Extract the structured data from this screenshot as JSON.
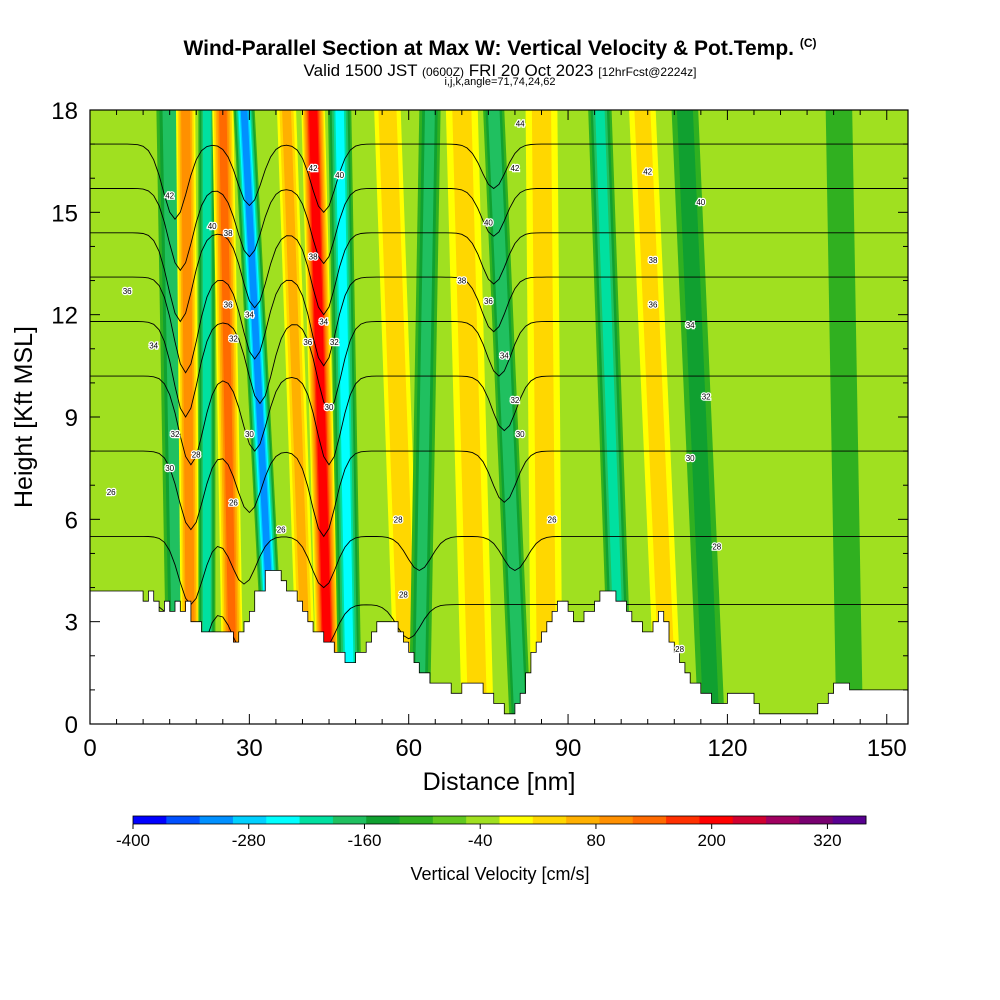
{
  "title": {
    "main": "Wind-Parallel Section at Max W: Vertical Velocity & Pot.Temp.",
    "copyright": "(C)",
    "valid_a": "Valid 1500 JST",
    "valid_b": "(0600Z)",
    "valid_c": "FRI 20 Oct 2023",
    "valid_d": "[12hrFcst@2224z]",
    "indices": "i,j,k,angle=71,74,24,62"
  },
  "chart_data": {
    "type": "heatmap",
    "xlabel": "Distance [nm]",
    "ylabel": "Height [Kft MSL]",
    "xlim": [
      0,
      154
    ],
    "ylim": [
      0,
      18
    ],
    "xticks": [
      0,
      30,
      60,
      90,
      120,
      150
    ],
    "yticks": [
      0,
      3,
      6,
      9,
      12,
      15,
      18
    ],
    "colorbar": {
      "label": "Vertical Velocity [cm/s]",
      "ticks": [
        -400,
        -280,
        -160,
        -40,
        80,
        200,
        320
      ],
      "range": [
        -400,
        360
      ],
      "step": 40,
      "colors": [
        "#0000ff",
        "#0050ff",
        "#0090ff",
        "#00d0ff",
        "#00ffff",
        "#00e0a0",
        "#20c060",
        "#10a030",
        "#30b020",
        "#60c820",
        "#a0e020",
        "#ffff00",
        "#ffd700",
        "#ffb000",
        "#ff9000",
        "#ff6a00",
        "#ff3000",
        "#ff0000",
        "#d00030",
        "#a00060",
        "#780070",
        "#580090"
      ]
    },
    "terrain": [
      [
        0,
        3.9
      ],
      [
        9,
        3.9
      ],
      [
        10,
        3.6
      ],
      [
        11,
        3.9
      ],
      [
        12,
        3.6
      ],
      [
        13,
        3.3
      ],
      [
        14,
        3.6
      ],
      [
        15,
        3.3
      ],
      [
        16,
        3.6
      ],
      [
        17,
        3.3
      ],
      [
        18,
        3.6
      ],
      [
        19,
        3.0
      ],
      [
        20,
        3.0
      ],
      [
        21,
        2.7
      ],
      [
        22,
        2.7
      ],
      [
        23,
        2.7
      ],
      [
        24,
        2.7
      ],
      [
        25,
        2.7
      ],
      [
        26,
        2.7
      ],
      [
        27,
        2.4
      ],
      [
        28,
        2.7
      ],
      [
        29,
        3.0
      ],
      [
        30,
        3.3
      ],
      [
        31,
        3.9
      ],
      [
        32,
        3.9
      ],
      [
        33,
        4.5
      ],
      [
        34,
        4.5
      ],
      [
        35,
        4.5
      ],
      [
        36,
        4.2
      ],
      [
        37,
        3.9
      ],
      [
        38,
        3.9
      ],
      [
        39,
        3.6
      ],
      [
        40,
        3.3
      ],
      [
        41,
        3.0
      ],
      [
        42,
        2.7
      ],
      [
        43,
        2.7
      ],
      [
        44,
        2.4
      ],
      [
        45,
        2.4
      ],
      [
        46,
        2.1
      ],
      [
        47,
        2.1
      ],
      [
        48,
        1.8
      ],
      [
        49,
        1.8
      ],
      [
        50,
        2.1
      ],
      [
        51,
        2.1
      ],
      [
        52,
        2.4
      ],
      [
        53,
        2.7
      ],
      [
        54,
        3.0
      ],
      [
        55,
        3.0
      ],
      [
        56,
        3.0
      ],
      [
        57,
        3.0
      ],
      [
        58,
        2.7
      ],
      [
        59,
        2.4
      ],
      [
        60,
        2.1
      ],
      [
        61,
        1.8
      ],
      [
        62,
        1.5
      ],
      [
        63,
        1.5
      ],
      [
        64,
        1.2
      ],
      [
        65,
        1.2
      ],
      [
        66,
        1.2
      ],
      [
        67,
        1.2
      ],
      [
        68,
        0.9
      ],
      [
        69,
        0.9
      ],
      [
        70,
        1.2
      ],
      [
        71,
        1.2
      ],
      [
        72,
        1.2
      ],
      [
        73,
        1.2
      ],
      [
        74,
        0.9
      ],
      [
        75,
        0.9
      ],
      [
        76,
        0.6
      ],
      [
        77,
        0.6
      ],
      [
        78,
        0.3
      ],
      [
        79,
        0.3
      ],
      [
        80,
        0.6
      ],
      [
        81,
        0.9
      ],
      [
        82,
        1.5
      ],
      [
        83,
        2.1
      ],
      [
        84,
        2.4
      ],
      [
        85,
        2.7
      ],
      [
        86,
        3.0
      ],
      [
        87,
        3.3
      ],
      [
        88,
        3.6
      ],
      [
        89,
        3.6
      ],
      [
        90,
        3.3
      ],
      [
        91,
        3.0
      ],
      [
        92,
        3.0
      ],
      [
        93,
        3.3
      ],
      [
        94,
        3.3
      ],
      [
        95,
        3.6
      ],
      [
        96,
        3.9
      ],
      [
        97,
        3.9
      ],
      [
        98,
        3.9
      ],
      [
        99,
        3.6
      ],
      [
        100,
        3.6
      ],
      [
        101,
        3.3
      ],
      [
        102,
        3.0
      ],
      [
        103,
        3.0
      ],
      [
        104,
        2.7
      ],
      [
        105,
        2.7
      ],
      [
        106,
        3.0
      ],
      [
        107,
        3.3
      ],
      [
        108,
        3.0
      ],
      [
        109,
        2.4
      ],
      [
        110,
        2.1
      ],
      [
        111,
        1.8
      ],
      [
        112,
        1.5
      ],
      [
        113,
        1.2
      ],
      [
        114,
        1.2
      ],
      [
        115,
        0.9
      ],
      [
        116,
        0.9
      ],
      [
        117,
        0.6
      ],
      [
        118,
        0.6
      ],
      [
        119,
        0.6
      ],
      [
        120,
        0.9
      ],
      [
        121,
        0.9
      ],
      [
        122,
        0.9
      ],
      [
        123,
        0.9
      ],
      [
        124,
        0.9
      ],
      [
        125,
        0.6
      ],
      [
        126,
        0.3
      ],
      [
        127,
        0.3
      ],
      [
        128,
        0.3
      ],
      [
        129,
        0.3
      ],
      [
        130,
        0.3
      ],
      [
        131,
        0.3
      ],
      [
        132,
        0.3
      ],
      [
        133,
        0.3
      ],
      [
        134,
        0.3
      ],
      [
        135,
        0.3
      ],
      [
        136,
        0.3
      ],
      [
        137,
        0.6
      ],
      [
        138,
        0.6
      ],
      [
        139,
        0.9
      ],
      [
        140,
        1.2
      ],
      [
        141,
        1.2
      ],
      [
        142,
        1.2
      ],
      [
        143,
        1.0
      ],
      [
        144,
        1.0
      ],
      [
        145,
        1.0
      ],
      [
        146,
        1.0
      ],
      [
        147,
        1.0
      ],
      [
        148,
        1.0
      ],
      [
        149,
        1.0
      ],
      [
        150,
        1.0
      ],
      [
        151,
        1.0
      ],
      [
        152,
        1.0
      ],
      [
        153,
        1.0
      ],
      [
        154,
        1.0
      ]
    ],
    "vertical_velocity_bands": [
      {
        "x_top": 15,
        "x_bottom": 17,
        "half_width": 2.5,
        "w": -140
      },
      {
        "x_top": 18,
        "x_bottom": 19,
        "half_width": 1.8,
        "w": 180
      },
      {
        "x_top": 22,
        "x_bottom": 22,
        "half_width": 1.6,
        "w": -180
      },
      {
        "x_top": 25,
        "x_bottom": 27,
        "half_width": 2.0,
        "w": 200
      },
      {
        "x_top": 29,
        "x_bottom": 35,
        "half_width": 2.0,
        "w": -280
      },
      {
        "x_top": 37,
        "x_bottom": 41,
        "half_width": 1.8,
        "w": 120
      },
      {
        "x_top": 42,
        "x_bottom": 45,
        "half_width": 2.2,
        "w": 300
      },
      {
        "x_top": 47,
        "x_bottom": 49,
        "half_width": 2.2,
        "w": -200
      },
      {
        "x_top": 56,
        "x_bottom": 60,
        "half_width": 2.5,
        "w": 100
      },
      {
        "x_top": 64,
        "x_bottom": 62,
        "half_width": 2.0,
        "w": -120
      },
      {
        "x_top": 70,
        "x_bottom": 73,
        "half_width": 3.0,
        "w": 80
      },
      {
        "x_top": 76,
        "x_bottom": 81,
        "half_width": 2.0,
        "w": -140
      },
      {
        "x_top": 85,
        "x_bottom": 86,
        "half_width": 3.0,
        "w": 80
      },
      {
        "x_top": 96,
        "x_bottom": 100,
        "half_width": 2.2,
        "w": -160
      },
      {
        "x_top": 104,
        "x_bottom": 109,
        "half_width": 2.5,
        "w": 80
      },
      {
        "x_top": 112,
        "x_bottom": 117,
        "half_width": 2.5,
        "w": -80
      },
      {
        "x_top": 141,
        "x_bottom": 143,
        "half_width": 2.5,
        "w": -60
      }
    ],
    "isentropes": [
      {
        "theta": 26,
        "base": 3.5,
        "dips": [
          {
            "x": 19,
            "d": 2.3
          },
          {
            "x": 29,
            "d": 1.4
          },
          {
            "x": 44,
            "d": 1.3
          },
          {
            "x": 60,
            "d": 1.0
          }
        ]
      },
      {
        "theta": 28,
        "base": 5.5,
        "dips": [
          {
            "x": 19,
            "d": 2.0
          },
          {
            "x": 29,
            "d": 1.4
          },
          {
            "x": 44,
            "d": 1.5
          },
          {
            "x": 62,
            "d": 1.0
          },
          {
            "x": 80,
            "d": 1.0
          }
        ]
      },
      {
        "theta": 30,
        "base": 8.0,
        "dips": [
          {
            "x": 19,
            "d": 2.3
          },
          {
            "x": 30,
            "d": 1.8
          },
          {
            "x": 44,
            "d": 2.5
          },
          {
            "x": 78,
            "d": 1.5
          }
        ]
      },
      {
        "theta": 32,
        "base": 10.2,
        "dips": [
          {
            "x": 19,
            "d": 2.6
          },
          {
            "x": 31,
            "d": 2.2
          },
          {
            "x": 45,
            "d": 2.6
          },
          {
            "x": 78,
            "d": 1.6
          }
        ]
      },
      {
        "theta": 34,
        "base": 11.8,
        "dips": [
          {
            "x": 18,
            "d": 2.8
          },
          {
            "x": 32,
            "d": 2.4
          },
          {
            "x": 45,
            "d": 2.6
          },
          {
            "x": 77,
            "d": 1.6
          }
        ]
      },
      {
        "theta": 36,
        "base": 13.1,
        "dips": [
          {
            "x": 18,
            "d": 2.8
          },
          {
            "x": 31,
            "d": 2.4
          },
          {
            "x": 44,
            "d": 2.6
          },
          {
            "x": 76,
            "d": 1.6
          }
        ]
      },
      {
        "theta": 38,
        "base": 14.4,
        "dips": [
          {
            "x": 17,
            "d": 2.6
          },
          {
            "x": 31,
            "d": 2.2
          },
          {
            "x": 44,
            "d": 2.4
          },
          {
            "x": 76,
            "d": 1.5
          }
        ]
      },
      {
        "theta": 40,
        "base": 15.7,
        "dips": [
          {
            "x": 17,
            "d": 2.4
          },
          {
            "x": 30,
            "d": 2.0
          },
          {
            "x": 44,
            "d": 2.2
          },
          {
            "x": 76,
            "d": 1.4
          }
        ]
      },
      {
        "theta": 42,
        "base": 17.0,
        "dips": [
          {
            "x": 16,
            "d": 2.2
          },
          {
            "x": 30,
            "d": 1.8
          },
          {
            "x": 44,
            "d": 2.0
          },
          {
            "x": 76,
            "d": 1.3
          }
        ]
      }
    ],
    "contour_labels": [
      {
        "x": 15,
        "y": 15.5,
        "text": "42"
      },
      {
        "x": 23,
        "y": 14.6,
        "text": "40"
      },
      {
        "x": 26,
        "y": 14.4,
        "text": "38"
      },
      {
        "x": 7,
        "y": 12.7,
        "text": "36"
      },
      {
        "x": 26,
        "y": 12.3,
        "text": "36"
      },
      {
        "x": 30,
        "y": 12.0,
        "text": "34"
      },
      {
        "x": 27,
        "y": 11.3,
        "text": "32"
      },
      {
        "x": 12,
        "y": 11.1,
        "text": "34"
      },
      {
        "x": 16,
        "y": 8.5,
        "text": "32"
      },
      {
        "x": 20,
        "y": 7.9,
        "text": "28"
      },
      {
        "x": 15,
        "y": 7.5,
        "text": "30"
      },
      {
        "x": 30,
        "y": 8.5,
        "text": "30"
      },
      {
        "x": 4,
        "y": 6.8,
        "text": "26"
      },
      {
        "x": 27,
        "y": 6.5,
        "text": "26"
      },
      {
        "x": 36,
        "y": 5.7,
        "text": "26"
      },
      {
        "x": 42,
        "y": 16.3,
        "text": "42"
      },
      {
        "x": 47,
        "y": 16.1,
        "text": "40"
      },
      {
        "x": 42,
        "y": 13.7,
        "text": "38"
      },
      {
        "x": 41,
        "y": 11.2,
        "text": "36"
      },
      {
        "x": 44,
        "y": 11.8,
        "text": "34"
      },
      {
        "x": 46,
        "y": 11.2,
        "text": "32"
      },
      {
        "x": 45,
        "y": 9.3,
        "text": "30"
      },
      {
        "x": 58,
        "y": 6.0,
        "text": "28"
      },
      {
        "x": 59,
        "y": 3.8,
        "text": "28"
      },
      {
        "x": 81,
        "y": 17.6,
        "text": "44"
      },
      {
        "x": 80,
        "y": 16.3,
        "text": "42"
      },
      {
        "x": 75,
        "y": 14.7,
        "text": "40"
      },
      {
        "x": 70,
        "y": 13.0,
        "text": "38"
      },
      {
        "x": 75,
        "y": 12.4,
        "text": "36"
      },
      {
        "x": 78,
        "y": 10.8,
        "text": "34"
      },
      {
        "x": 80,
        "y": 9.5,
        "text": "32"
      },
      {
        "x": 81,
        "y": 8.5,
        "text": "30"
      },
      {
        "x": 87,
        "y": 6.0,
        "text": "26"
      },
      {
        "x": 105,
        "y": 16.2,
        "text": "42"
      },
      {
        "x": 115,
        "y": 15.3,
        "text": "40"
      },
      {
        "x": 106,
        "y": 13.6,
        "text": "38"
      },
      {
        "x": 106,
        "y": 12.3,
        "text": "36"
      },
      {
        "x": 113,
        "y": 11.7,
        "text": "34"
      },
      {
        "x": 116,
        "y": 9.6,
        "text": "32"
      },
      {
        "x": 113,
        "y": 7.8,
        "text": "30"
      },
      {
        "x": 118,
        "y": 5.2,
        "text": "28"
      },
      {
        "x": 111,
        "y": 2.2,
        "text": "28"
      }
    ]
  }
}
